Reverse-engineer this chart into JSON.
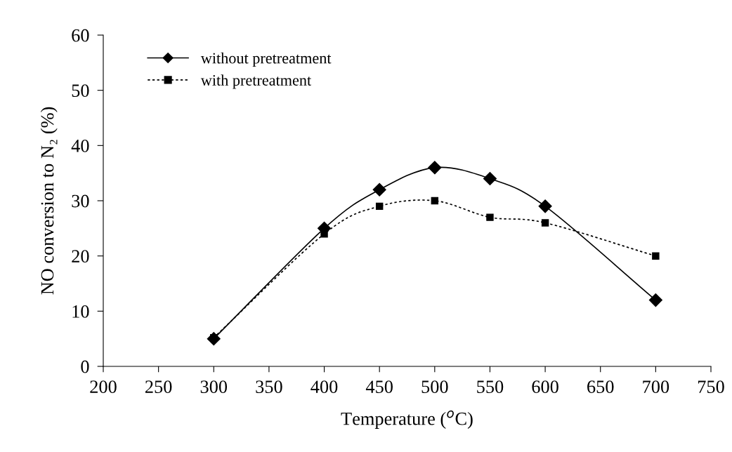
{
  "chart_data": {
    "type": "line",
    "xlabel": "Temperature ($^{o}$C)",
    "ylabel": "NO conversion to N₂ (%)",
    "x": [
      300,
      400,
      450,
      500,
      550,
      600,
      700
    ],
    "series": [
      {
        "name": "without pretreatment",
        "color": "#000000",
        "marker": "diamond",
        "line_style": "solid",
        "values": [
          5,
          25,
          32,
          36,
          34,
          29,
          12
        ]
      },
      {
        "name": "with pretreatment",
        "color": "#000000",
        "marker": "square",
        "line_style": "dotted",
        "values": [
          5.2,
          24,
          29,
          30,
          27,
          26,
          20
        ]
      }
    ],
    "xlim": [
      200,
      750
    ],
    "xticks": [
      200,
      250,
      300,
      350,
      400,
      450,
      500,
      550,
      600,
      650,
      700,
      750
    ],
    "ylim": [
      0,
      60
    ],
    "yticks": [
      0,
      10,
      20,
      30,
      40,
      50,
      60
    ],
    "grid": false,
    "legend": "top left"
  }
}
